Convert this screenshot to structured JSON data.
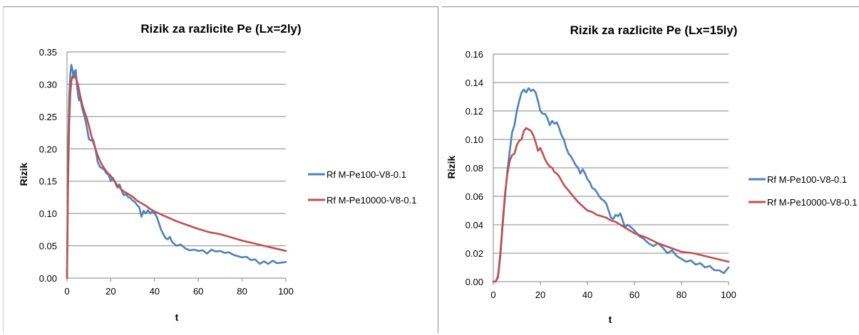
{
  "chart_data": [
    {
      "type": "line",
      "title": "Rizik za razlicite Pe (Lx=2ly)",
      "xlabel": "t",
      "ylabel": "Rizik",
      "xlim": [
        0,
        100
      ],
      "ylim": [
        0,
        0.35
      ],
      "xticks": [
        "0",
        "20",
        "40",
        "60",
        "80",
        "100"
      ],
      "yticks": [
        "0.00",
        "0.05",
        "0.10",
        "0.15",
        "0.20",
        "0.25",
        "0.30",
        "0.35"
      ],
      "grid": "horizontal",
      "legend": "right",
      "series": [
        {
          "name": "Rf M-Pe100-V8-0.1",
          "color": "#4f81bd",
          "x": [
            0,
            0.5,
            1,
            1.5,
            2,
            2.5,
            3,
            3.5,
            4,
            4.5,
            5,
            5.5,
            6,
            7,
            8,
            9,
            10,
            11,
            12,
            13,
            14,
            15,
            16,
            17,
            18,
            19,
            20,
            21,
            22,
            23,
            24,
            25,
            26,
            27,
            28,
            29,
            30,
            31,
            32,
            33,
            34,
            35,
            36,
            37,
            38,
            39,
            40,
            41,
            42,
            43,
            44,
            45,
            46,
            47,
            48,
            50,
            52,
            54,
            56,
            58,
            60,
            62,
            64,
            66,
            68,
            70,
            72,
            74,
            76,
            78,
            80,
            82,
            84,
            86,
            88,
            90,
            92,
            94,
            96,
            98,
            100
          ],
          "y": [
            0.0,
            0.19,
            0.28,
            0.315,
            0.33,
            0.322,
            0.31,
            0.32,
            0.322,
            0.3,
            0.285,
            0.275,
            0.28,
            0.262,
            0.25,
            0.235,
            0.215,
            0.213,
            0.214,
            0.2,
            0.18,
            0.172,
            0.17,
            0.168,
            0.162,
            0.16,
            0.15,
            0.155,
            0.148,
            0.14,
            0.145,
            0.135,
            0.128,
            0.13,
            0.125,
            0.124,
            0.12,
            0.118,
            0.113,
            0.11,
            0.095,
            0.104,
            0.1,
            0.105,
            0.1,
            0.103,
            0.1,
            0.095,
            0.085,
            0.075,
            0.068,
            0.062,
            0.06,
            0.064,
            0.056,
            0.05,
            0.052,
            0.046,
            0.043,
            0.044,
            0.042,
            0.043,
            0.038,
            0.044,
            0.041,
            0.042,
            0.039,
            0.04,
            0.036,
            0.034,
            0.032,
            0.033,
            0.028,
            0.029,
            0.022,
            0.026,
            0.022,
            0.027,
            0.023,
            0.024,
            0.025
          ]
        },
        {
          "name": "Rf M-Pe10000-V8-0.1",
          "color": "#c0504d",
          "x": [
            0,
            0.5,
            1,
            1.5,
            2,
            2.5,
            3,
            4,
            5,
            6,
            7,
            8,
            9,
            10,
            11,
            12,
            13,
            14,
            15,
            16,
            18,
            20,
            22,
            24,
            26,
            28,
            30,
            32,
            34,
            36,
            38,
            40,
            42,
            44,
            46,
            48,
            50,
            55,
            60,
            65,
            70,
            75,
            80,
            85,
            90,
            95,
            100
          ],
          "y": [
            0.0,
            0.15,
            0.24,
            0.285,
            0.305,
            0.312,
            0.314,
            0.31,
            0.3,
            0.283,
            0.268,
            0.257,
            0.248,
            0.236,
            0.222,
            0.21,
            0.2,
            0.19,
            0.182,
            0.175,
            0.165,
            0.158,
            0.148,
            0.14,
            0.134,
            0.13,
            0.126,
            0.12,
            0.116,
            0.112,
            0.107,
            0.103,
            0.1,
            0.097,
            0.094,
            0.091,
            0.088,
            0.082,
            0.076,
            0.071,
            0.068,
            0.063,
            0.058,
            0.054,
            0.05,
            0.046,
            0.042
          ]
        }
      ]
    },
    {
      "type": "line",
      "title": "Rizik za razlicite Pe (Lx=15ly)",
      "xlabel": "t",
      "ylabel": "Rizik",
      "xlim": [
        0,
        100
      ],
      "ylim": [
        0,
        0.16
      ],
      "xticks": [
        "0",
        "20",
        "40",
        "60",
        "80",
        "100"
      ],
      "yticks": [
        "0.00",
        "0.02",
        "0.04",
        "0.06",
        "0.08",
        "0.10",
        "0.12",
        "0.14",
        "0.16"
      ],
      "grid": "horizontal",
      "legend": "right",
      "series": [
        {
          "name": "Rf M-Pe100-V8-0.1",
          "color": "#4f81bd",
          "x": [
            0,
            1,
            2,
            3,
            4,
            5,
            6,
            7,
            8,
            9,
            10,
            11,
            12,
            13,
            14,
            15,
            16,
            17,
            18,
            19,
            20,
            21,
            22,
            23,
            24,
            25,
            26,
            27,
            28,
            29,
            30,
            31,
            32,
            33,
            34,
            35,
            36,
            37,
            38,
            39,
            40,
            41,
            42,
            43,
            44,
            45,
            46,
            47,
            48,
            49,
            50,
            51,
            52,
            53,
            54,
            55,
            56,
            57,
            58,
            60,
            62,
            64,
            66,
            68,
            70,
            72,
            74,
            76,
            78,
            80,
            82,
            84,
            86,
            88,
            90,
            92,
            94,
            96,
            98,
            100
          ],
          "y": [
            0.0,
            0.0,
            0.003,
            0.018,
            0.04,
            0.06,
            0.078,
            0.092,
            0.105,
            0.11,
            0.12,
            0.127,
            0.133,
            0.135,
            0.133,
            0.136,
            0.134,
            0.135,
            0.133,
            0.127,
            0.12,
            0.118,
            0.118,
            0.115,
            0.11,
            0.113,
            0.111,
            0.112,
            0.108,
            0.103,
            0.1,
            0.094,
            0.09,
            0.088,
            0.085,
            0.082,
            0.08,
            0.076,
            0.079,
            0.076,
            0.072,
            0.07,
            0.066,
            0.065,
            0.063,
            0.06,
            0.058,
            0.057,
            0.055,
            0.05,
            0.045,
            0.044,
            0.047,
            0.046,
            0.048,
            0.043,
            0.038,
            0.04,
            0.039,
            0.036,
            0.032,
            0.03,
            0.027,
            0.025,
            0.027,
            0.024,
            0.02,
            0.022,
            0.018,
            0.016,
            0.014,
            0.015,
            0.012,
            0.013,
            0.01,
            0.011,
            0.008,
            0.008,
            0.006,
            0.01
          ]
        },
        {
          "name": "Rf M-Pe10000-V8-0.1",
          "color": "#c0504d",
          "x": [
            0,
            1,
            2,
            3,
            4,
            5,
            6,
            7,
            8,
            9,
            10,
            11,
            12,
            13,
            14,
            15,
            16,
            17,
            18,
            19,
            20,
            21,
            22,
            23,
            24,
            25,
            26,
            27,
            28,
            30,
            32,
            34,
            36,
            38,
            40,
            42,
            44,
            46,
            48,
            50,
            52,
            54,
            56,
            58,
            60,
            65,
            70,
            75,
            80,
            85,
            90,
            95,
            100
          ],
          "y": [
            0.0,
            0.0,
            0.004,
            0.02,
            0.042,
            0.062,
            0.076,
            0.085,
            0.089,
            0.09,
            0.096,
            0.099,
            0.1,
            0.106,
            0.108,
            0.107,
            0.106,
            0.103,
            0.098,
            0.092,
            0.094,
            0.09,
            0.086,
            0.083,
            0.081,
            0.08,
            0.077,
            0.076,
            0.074,
            0.068,
            0.064,
            0.06,
            0.056,
            0.053,
            0.05,
            0.049,
            0.047,
            0.046,
            0.045,
            0.043,
            0.042,
            0.04,
            0.038,
            0.036,
            0.034,
            0.031,
            0.027,
            0.024,
            0.021,
            0.02,
            0.018,
            0.016,
            0.014
          ]
        }
      ]
    }
  ]
}
